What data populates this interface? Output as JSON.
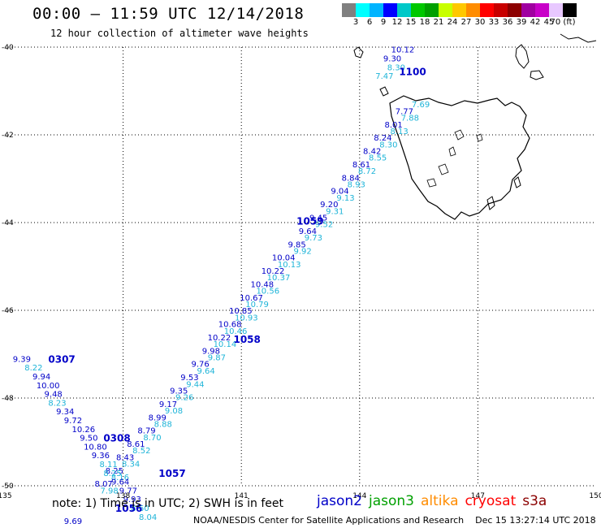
{
  "header": {
    "title": "00:00 – 11:59 UTC 12/14/2018",
    "subtitle": "12 hour collection of altimeter wave heights"
  },
  "legend": {
    "colors": [
      "#808080",
      "#00ffff",
      "#00b4ff",
      "#0000ff",
      "#00c8c8",
      "#00c800",
      "#00a000",
      "#c8ff00",
      "#ffc800",
      "#ff8c00",
      "#ff0000",
      "#c80000",
      "#8c0000",
      "#a000a0",
      "#c800c8",
      "#e8c8ff",
      "#000000"
    ],
    "ticks": [
      "3",
      "6",
      "9",
      "12",
      "15",
      "18",
      "21",
      "24",
      "27",
      "30",
      "33",
      "36",
      "39",
      "42",
      "45",
      "70 (ft)"
    ]
  },
  "map": {
    "lon_range": [
      135,
      150
    ],
    "lat_range": [
      -50,
      -40
    ],
    "x_ticks": [
      "135",
      "138",
      "141",
      "144",
      "147",
      "150"
    ],
    "y_ticks": [
      "-40",
      "-42",
      "-44",
      "-46",
      "-48",
      "-50"
    ],
    "grid": "dotted"
  },
  "colors": {
    "jason2": "#0000c8",
    "jason3": "#00a000",
    "altika": "#ff8c00",
    "cryosat": "#ff0000",
    "s3a": "#8b0000",
    "light": "#1eb4d8"
  },
  "swh_labels": [
    {
      "lon": 144.8,
      "lat": -40.05,
      "text": "10.12",
      "sat": "jason2"
    },
    {
      "lon": 144.6,
      "lat": -40.25,
      "text": "9.30",
      "sat": "jason2"
    },
    {
      "lon": 144.7,
      "lat": -40.45,
      "text": "8.30",
      "sat": "light"
    },
    {
      "lon": 144.4,
      "lat": -40.65,
      "text": "7.47",
      "sat": "light"
    },
    {
      "lon": 135.2,
      "lat": -47.1,
      "text": "9.39",
      "sat": "jason2"
    },
    {
      "lon": 135.5,
      "lat": -47.3,
      "text": "8.22",
      "sat": "light"
    },
    {
      "lon": 135.7,
      "lat": -47.5,
      "text": "9.94",
      "sat": "jason2"
    },
    {
      "lon": 135.8,
      "lat": -47.7,
      "text": "10.00",
      "sat": "jason2"
    },
    {
      "lon": 136.0,
      "lat": -47.9,
      "text": "9.48",
      "sat": "jason2"
    },
    {
      "lon": 136.1,
      "lat": -48.1,
      "text": "8.23",
      "sat": "light"
    },
    {
      "lon": 136.3,
      "lat": -48.3,
      "text": "9.34",
      "sat": "jason2"
    },
    {
      "lon": 136.5,
      "lat": -48.5,
      "text": "9.72",
      "sat": "jason2"
    },
    {
      "lon": 136.7,
      "lat": -48.7,
      "text": "10.26",
      "sat": "jason2"
    },
    {
      "lon": 136.9,
      "lat": -48.9,
      "text": "9.50",
      "sat": "jason2"
    },
    {
      "lon": 137.0,
      "lat": -49.1,
      "text": "10.80",
      "sat": "jason2"
    },
    {
      "lon": 137.2,
      "lat": -49.3,
      "text": "9.36",
      "sat": "jason2"
    },
    {
      "lon": 137.4,
      "lat": -49.5,
      "text": "8.11",
      "sat": "light"
    },
    {
      "lon": 137.5,
      "lat": -49.7,
      "text": "8.25",
      "sat": "light"
    },
    {
      "lon": 137.7,
      "lat": -49.9,
      "text": "9.64",
      "sat": "jason2"
    },
    {
      "lon": 137.9,
      "lat": -50.1,
      "text": "9.77",
      "sat": "jason2"
    },
    {
      "lon": 138.0,
      "lat": -50.3,
      "text": "9.93",
      "sat": "jason2"
    },
    {
      "lon": 138.2,
      "lat": -50.5,
      "text": "8.60",
      "sat": "light"
    },
    {
      "lon": 138.4,
      "lat": -50.7,
      "text": "8.04",
      "sat": "light"
    },
    {
      "lon": 136.5,
      "lat": -50.8,
      "text": "9.69",
      "sat": "jason2"
    }
  ],
  "time_labels": [
    {
      "lon": 145.0,
      "lat": -40.55,
      "text": "1100",
      "sat": "jason2"
    },
    {
      "lon": 142.4,
      "lat": -43.95,
      "text": "1059",
      "sat": "jason2"
    },
    {
      "lon": 140.8,
      "lat": -46.65,
      "text": "1058",
      "sat": "jason2"
    },
    {
      "lon": 136.1,
      "lat": -47.1,
      "text": "0307",
      "sat": "jason2"
    },
    {
      "lon": 137.5,
      "lat": -48.9,
      "text": "0308",
      "sat": "jason2"
    },
    {
      "lon": 138.9,
      "lat": -49.7,
      "text": "1057",
      "sat": "jason2"
    },
    {
      "lon": 137.8,
      "lat": -50.5,
      "text": "1056",
      "sat": "jason2"
    }
  ],
  "track_values": [
    "7.69",
    "7.77",
    "7.88",
    "8.01",
    "8.13",
    "8.24",
    "8.30",
    "8.42",
    "8.55",
    "8.61",
    "8.72",
    "8.84",
    "8.93",
    "9.04",
    "9.13",
    "9.20",
    "9.31",
    "9.45",
    "9.52",
    "9.64",
    "9.73",
    "9.85",
    "9.92",
    "10.04",
    "10.13",
    "10.22",
    "10.37",
    "10.48",
    "10.56",
    "10.67",
    "10.79",
    "10.85",
    "10.93",
    "10.68",
    "10.46",
    "10.22",
    "10.14",
    "9.98",
    "9.87",
    "9.76",
    "9.64",
    "9.53",
    "9.44",
    "9.35",
    "9.26",
    "9.17",
    "9.08",
    "8.99",
    "8.88",
    "8.79",
    "8.70",
    "8.61",
    "8.52",
    "8.43",
    "8.34",
    "8.25",
    "8.16",
    "8.07",
    "7.98"
  ],
  "footer": {
    "note": "note: 1) Time is in UTC; 2) SWH is in feet",
    "satellites": [
      {
        "name": "jason2",
        "color": "#0000c8"
      },
      {
        "name": "jason3",
        "color": "#00a000"
      },
      {
        "name": "altika",
        "color": "#ff8c00"
      },
      {
        "name": "cryosat",
        "color": "#ff0000"
      },
      {
        "name": "s3a",
        "color": "#8b0000"
      }
    ],
    "credit": "NOAA/NESDIS Center for Satellite Applications and Research",
    "timestamp": "Dec 15 13:27:14 UTC 2018"
  }
}
